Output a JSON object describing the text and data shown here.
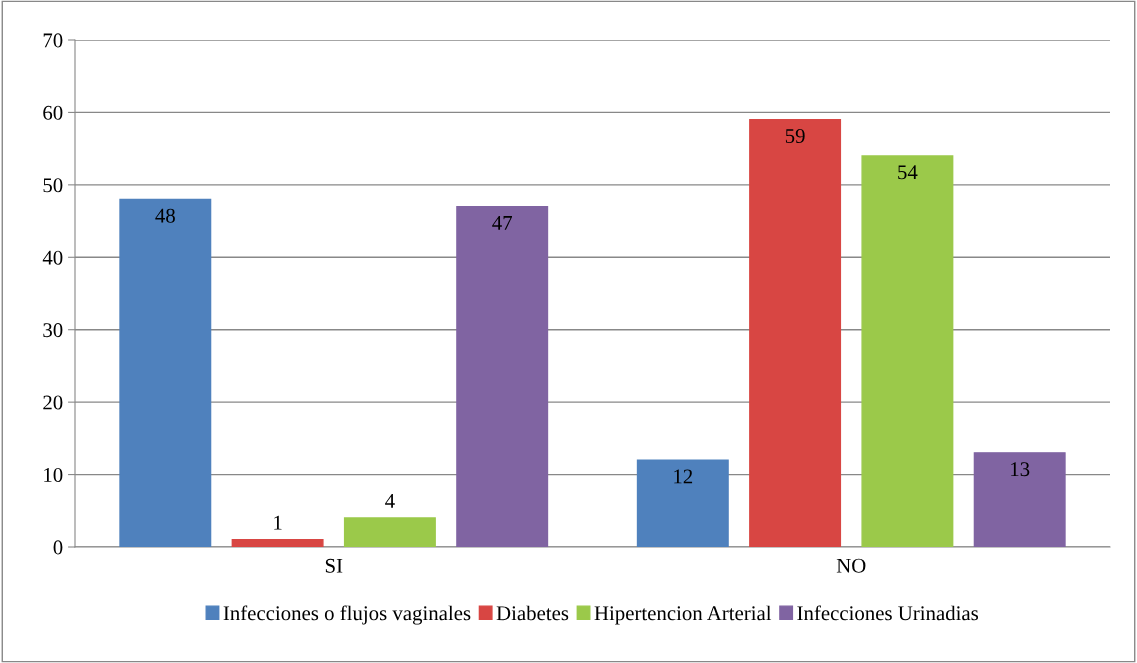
{
  "chart_data": {
    "type": "bar",
    "categories": [
      "SI",
      "NO"
    ],
    "series": [
      {
        "name": "Infecciones o flujos vaginales",
        "color": "#4f81bd",
        "values": [
          48,
          12
        ]
      },
      {
        "name": "Diabetes",
        "color": "#d84643",
        "values": [
          1,
          59
        ]
      },
      {
        "name": "Hipertencion Arterial",
        "color": "#9bc94a",
        "values": [
          4,
          54
        ]
      },
      {
        "name": "Infecciones Urinadias",
        "color": "#8064a2",
        "values": [
          47,
          13
        ]
      }
    ],
    "ylim": [
      0,
      70
    ],
    "yticks": [
      0,
      10,
      20,
      30,
      40,
      50,
      60,
      70
    ],
    "grid": "y",
    "legend": "bottom",
    "data_labels": true
  }
}
